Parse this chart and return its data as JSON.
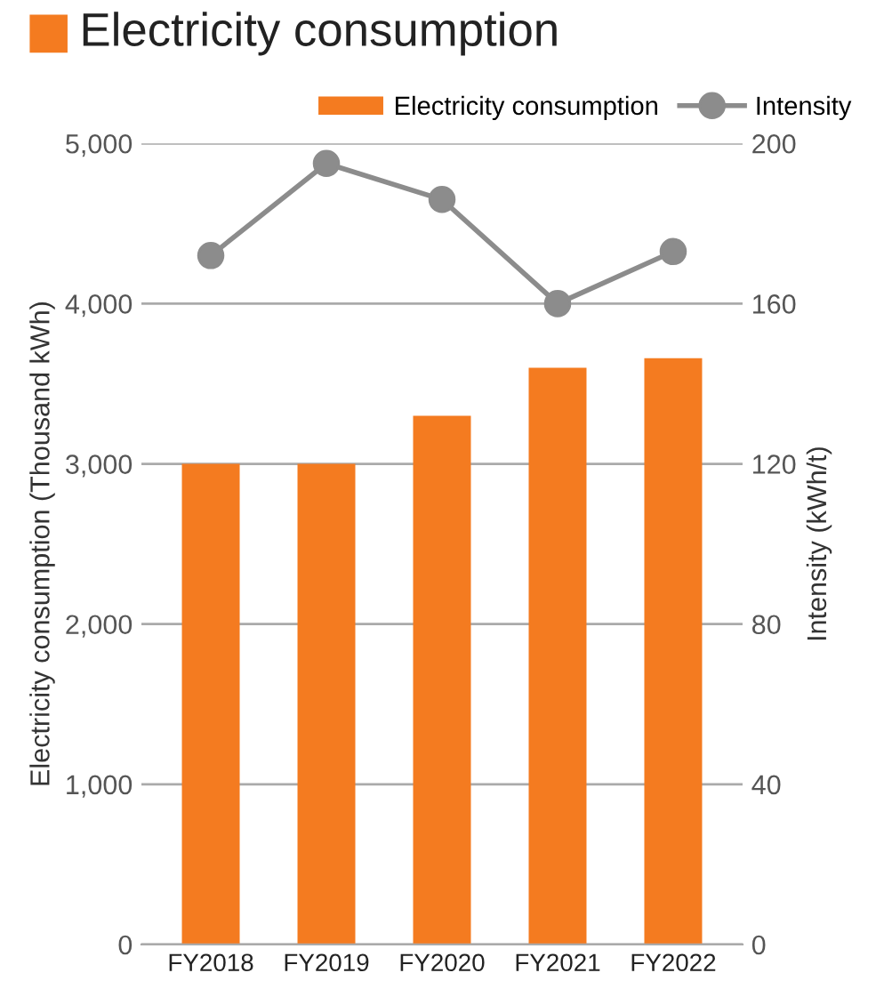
{
  "chart_data": {
    "type": "bar",
    "title": "Electricity consumption",
    "categories": [
      "FY2018",
      "FY2019",
      "FY2020",
      "FY2021",
      "FY2022"
    ],
    "series": [
      {
        "name": "Electricity consumption",
        "color": "#f47b20",
        "values": [
          3000,
          3000,
          3300,
          3600,
          3660
        ]
      },
      {
        "name": "Intensity",
        "type": "line",
        "axis": "y2",
        "color": "#8c8c8c",
        "marker": "circle",
        "values": [
          172,
          195,
          186,
          160,
          173
        ]
      }
    ],
    "ylabel": "Electricity consumption (Thousand kWh)",
    "y2label": "Intensity (kWh/t)",
    "ylim": [
      0,
      5000
    ],
    "yticks": [
      {
        "value": 0,
        "label": "0"
      },
      {
        "value": 1000,
        "label": "1,000"
      },
      {
        "value": 2000,
        "label": "2,000"
      },
      {
        "value": 3000,
        "label": "3,000"
      },
      {
        "value": 4000,
        "label": "4,000"
      },
      {
        "value": 5000,
        "label": "5,000"
      }
    ],
    "y2lim": [
      0,
      200
    ],
    "y2ticks": [
      0,
      40,
      80,
      120,
      160,
      200
    ],
    "grid": "y",
    "legend": "top right"
  }
}
